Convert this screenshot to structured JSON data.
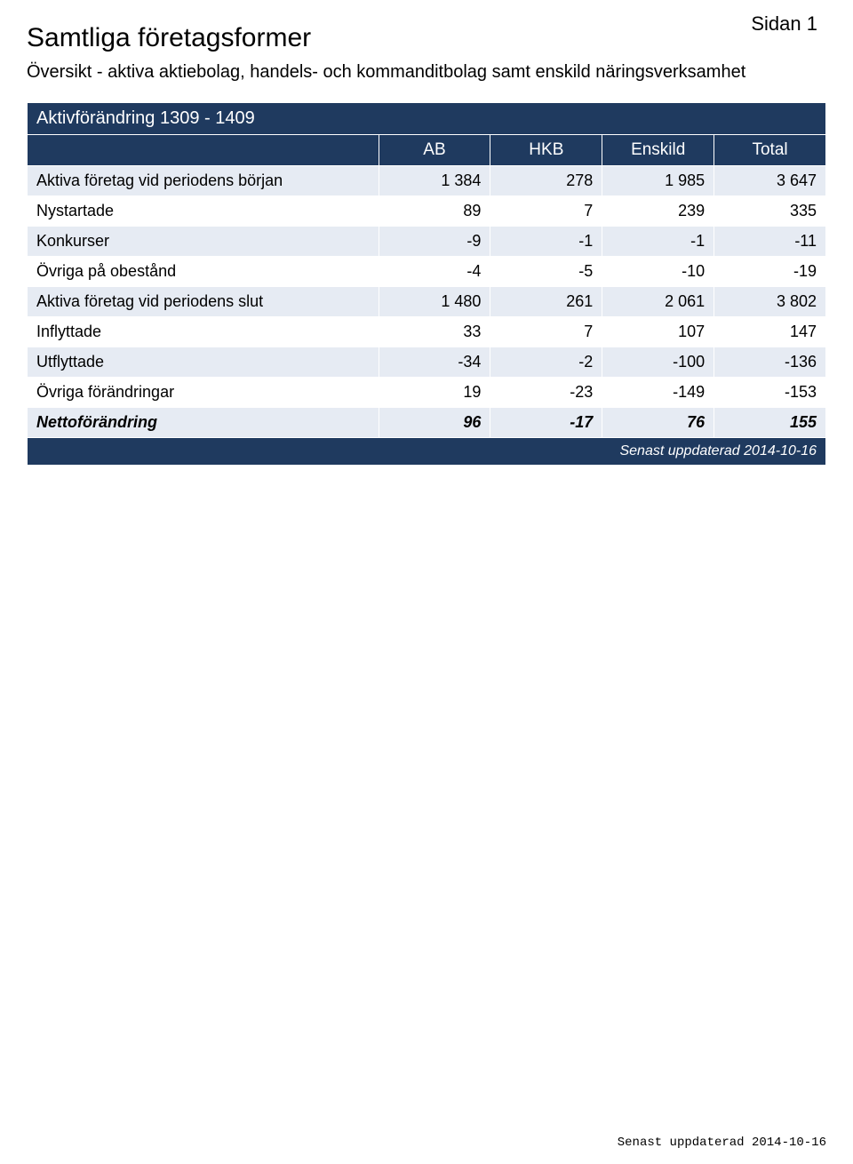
{
  "page_label": "Sidan 1",
  "title": "Samtliga företagsformer",
  "subtitle": "Översikt - aktiva aktiebolag, handels- och kommanditbolag samt enskild näringsverksamhet",
  "table": {
    "section_heading": "Aktivförändring 1309 - 1409",
    "columns": [
      "AB",
      "HKB",
      "Enskild",
      "Total"
    ],
    "rows": [
      {
        "label": "Aktiva företag vid periodens början",
        "values": [
          "1 384",
          "278",
          "1 985",
          "3 647"
        ],
        "italic_bold": false
      },
      {
        "label": "Nystartade",
        "values": [
          "89",
          "7",
          "239",
          "335"
        ],
        "italic_bold": false
      },
      {
        "label": "Konkurser",
        "values": [
          "-9",
          "-1",
          "-1",
          "-11"
        ],
        "italic_bold": false
      },
      {
        "label": "Övriga på obestånd",
        "values": [
          "-4",
          "-5",
          "-10",
          "-19"
        ],
        "italic_bold": false
      },
      {
        "label": "Aktiva företag vid periodens slut",
        "values": [
          "1 480",
          "261",
          "2 061",
          "3 802"
        ],
        "italic_bold": false
      },
      {
        "label": "Inflyttade",
        "values": [
          "33",
          "7",
          "107",
          "147"
        ],
        "italic_bold": false
      },
      {
        "label": "Utflyttade",
        "values": [
          "-34",
          "-2",
          "-100",
          "-136"
        ],
        "italic_bold": false
      },
      {
        "label": "Övriga förändringar",
        "values": [
          "19",
          "-23",
          "-149",
          "-153"
        ],
        "italic_bold": false
      },
      {
        "label": "Nettoförändring",
        "values": [
          "96",
          "-17",
          "76",
          "155"
        ],
        "italic_bold": true
      }
    ],
    "footer_text": "Senast uppdaterad 2014-10-16"
  },
  "bottom_stamp": "Senast uppdaterad 2014-10-16",
  "colors": {
    "bar_bg": "#1f3a5f",
    "bar_text": "#ffffff",
    "row_even_bg": "#e6ebf3",
    "row_odd_bg": "#ffffff",
    "page_bg": "#ffffff",
    "text": "#000000"
  }
}
